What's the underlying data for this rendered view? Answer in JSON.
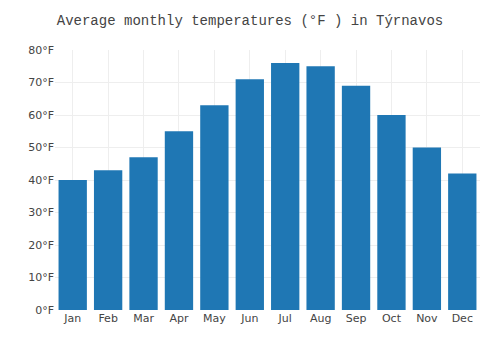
{
  "chart_data": {
    "type": "bar",
    "title": "Average monthly temperatures (°F ) in Týrnavos",
    "categories": [
      "Jan",
      "Feb",
      "Mar",
      "Apr",
      "May",
      "Jun",
      "Jul",
      "Aug",
      "Sep",
      "Oct",
      "Nov",
      "Dec"
    ],
    "values": [
      40,
      43,
      47,
      55,
      63,
      71,
      76,
      75,
      69,
      60,
      50,
      42
    ],
    "ylim": [
      0,
      80
    ],
    "yticks": [
      {
        "value": 0,
        "label": "0°F"
      },
      {
        "value": 10,
        "label": "10°F"
      },
      {
        "value": 20,
        "label": "20°F"
      },
      {
        "value": 30,
        "label": "30°F"
      },
      {
        "value": 40,
        "label": "40°F"
      },
      {
        "value": 50,
        "label": "50°F"
      },
      {
        "value": 60,
        "label": "60°F"
      },
      {
        "value": 70,
        "label": "70°F"
      },
      {
        "value": 80,
        "label": "80°F"
      }
    ],
    "grid": true
  }
}
